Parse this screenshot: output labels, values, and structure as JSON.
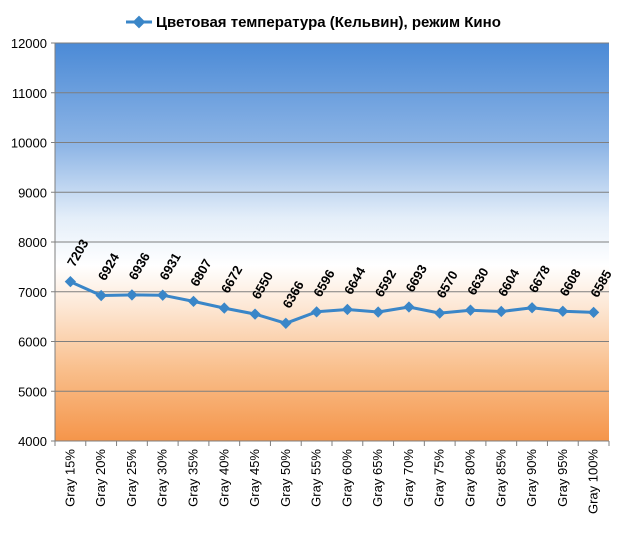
{
  "chart_data": {
    "type": "line",
    "title": "",
    "xlabel": "",
    "ylabel": "",
    "categories": [
      "Gray 15%",
      "Gray 20%",
      "Gray 25%",
      "Gray 30%",
      "Gray 35%",
      "Gray 40%",
      "Gray 45%",
      "Gray 50%",
      "Gray 55%",
      "Gray 60%",
      "Gray 65%",
      "Gray 70%",
      "Gray 75%",
      "Gray 80%",
      "Gray 85%",
      "Gray 90%",
      "Gray 95%",
      "Gray 100%"
    ],
    "series": [
      {
        "name": "Цветовая температура (Кельвин), режим Кино",
        "values": [
          7203,
          6924,
          6936,
          6931,
          6807,
          6672,
          6550,
          6366,
          6596,
          6644,
          6592,
          6693,
          6570,
          6630,
          6604,
          6678,
          6608,
          6585
        ],
        "color": "#3a86c8"
      }
    ],
    "ylim": [
      4000,
      12000
    ],
    "yticks": [
      4000,
      5000,
      6000,
      7000,
      8000,
      9000,
      10000,
      11000,
      12000
    ],
    "grid": true,
    "legend_position": "top",
    "data_labels": true,
    "background_gradient": [
      "#4f8ed8",
      "#ffffff",
      "#f69a4c"
    ]
  }
}
